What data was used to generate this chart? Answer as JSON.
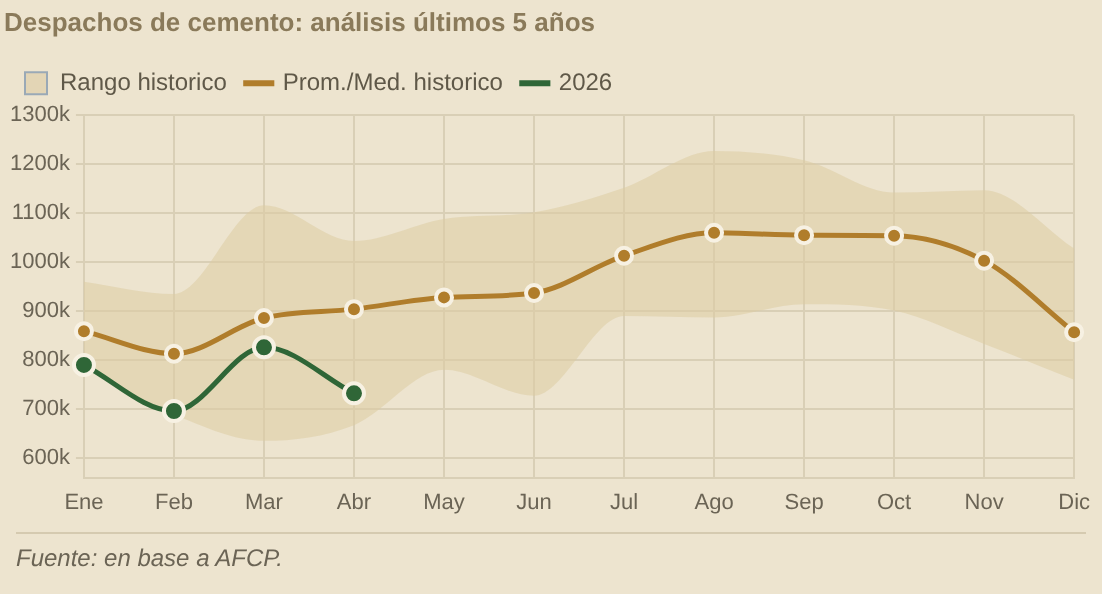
{
  "chart_data": {
    "type": "line",
    "title": "Despachos de cemento: análisis últimos 5 años",
    "categories": [
      "Ene",
      "Feb",
      "Mar",
      "Abr",
      "May",
      "Jun",
      "Jul",
      "Ago",
      "Sep",
      "Oct",
      "Nov",
      "Dic"
    ],
    "series": [
      {
        "name": "Rango historico",
        "type": "area",
        "color": "#dccca3",
        "marker": "none",
        "values": [
          null,
          null,
          null,
          null,
          null,
          null,
          null,
          null,
          null,
          null,
          null,
          null
        ],
        "lower": [
          784,
          689,
          635,
          667,
          780,
          727,
          890,
          887,
          914,
          901,
          833,
          760
        ],
        "upper": [
          960,
          935,
          1116,
          1043,
          1088,
          1102,
          1152,
          1227,
          1208,
          1142,
          1147,
          1028
        ]
      },
      {
        "name": "Prom./Med. historico",
        "type": "line",
        "color": "#b07d2b",
        "values": [
          859,
          813,
          886,
          904,
          928,
          937,
          1013,
          1060,
          1055,
          1054,
          1003,
          857
        ]
      },
      {
        "name": "2026",
        "type": "line",
        "color": "#2f6637",
        "values": [
          790,
          696,
          826,
          732,
          null,
          null,
          null,
          null,
          null,
          null,
          null,
          null
        ]
      }
    ],
    "ylim": [
      560,
      1300
    ],
    "yticks": [
      {
        "value": 600,
        "label": "600k"
      },
      {
        "value": 700,
        "label": "700k"
      },
      {
        "value": 800,
        "label": "800k"
      },
      {
        "value": 900,
        "label": "900k"
      },
      {
        "value": 1000,
        "label": "1000k"
      },
      {
        "value": 1100,
        "label": "1100k"
      },
      {
        "value": 1200,
        "label": "1200k"
      },
      {
        "value": 1300,
        "label": "1300k"
      }
    ],
    "grid": true,
    "legend": "top left",
    "marker": "circle",
    "line_style": "solid",
    "annotations": [
      "Fuente: en base a AFCP."
    ]
  }
}
